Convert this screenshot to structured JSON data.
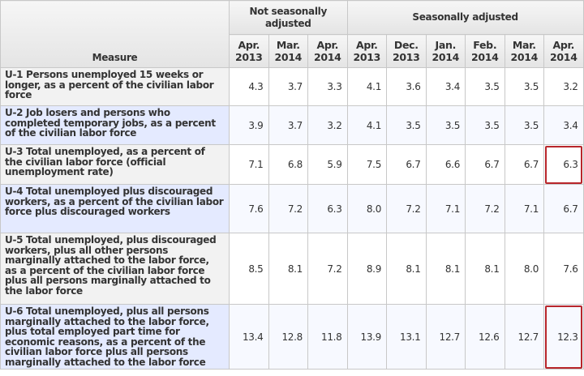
{
  "table": {
    "header": {
      "measure": "Measure",
      "groups": [
        "Not seasonally adjusted",
        "Seasonally adjusted"
      ],
      "columns": [
        "Apr. 2013",
        "Mar. 2014",
        "Apr. 2014",
        "Apr. 2013",
        "Dec. 2013",
        "Jan. 2014",
        "Feb. 2014",
        "Mar. 2014",
        "Apr. 2014"
      ]
    },
    "rows": [
      {
        "measure": "U-1 Persons unemployed 15 weeks or longer, as a percent of the civilian labor force",
        "values": [
          "4.3",
          "3.7",
          "3.3",
          "4.1",
          "3.6",
          "3.4",
          "3.5",
          "3.5",
          "3.2"
        ]
      },
      {
        "measure": "U-2 Job losers and persons who completed temporary jobs, as a percent of the civilian labor force",
        "values": [
          "3.9",
          "3.7",
          "3.2",
          "4.1",
          "3.5",
          "3.5",
          "3.5",
          "3.5",
          "3.4"
        ]
      },
      {
        "measure": "U-3 Total unemployed, as a percent of the civilian labor force (official unemployment rate)",
        "values": [
          "7.1",
          "6.8",
          "5.9",
          "7.5",
          "6.7",
          "6.6",
          "6.7",
          "6.7",
          "6.3"
        ]
      },
      {
        "measure": "U-4 Total unemployed plus discouraged workers, as a percent of the civilian labor force plus discouraged workers",
        "values": [
          "7.6",
          "7.2",
          "6.3",
          "8.0",
          "7.2",
          "7.1",
          "7.2",
          "7.1",
          "6.7"
        ]
      },
      {
        "measure": "U-5 Total unemployed, plus discouraged workers, plus all other persons marginally attached to the labor force, as a percent of the civilian labor force plus all persons marginally attached to the labor force",
        "values": [
          "8.5",
          "8.1",
          "7.2",
          "8.9",
          "8.1",
          "8.1",
          "8.1",
          "8.0",
          "7.6"
        ]
      },
      {
        "measure": "U-6 Total unemployed, plus all persons marginally attached to the labor force, plus total employed part time for economic reasons, as a percent of the civilian labor force plus all persons marginally attached to the labor force",
        "values": [
          "13.4",
          "12.8",
          "11.8",
          "13.9",
          "13.1",
          "12.7",
          "12.6",
          "12.7",
          "12.3"
        ]
      }
    ]
  }
}
